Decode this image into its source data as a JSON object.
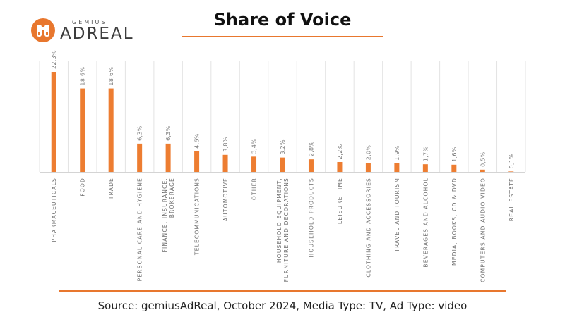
{
  "logo": {
    "small": "GEMIUS",
    "big": "ADREAL"
  },
  "chart_data": {
    "type": "bar",
    "title": "Share of Voice",
    "categories": [
      [
        "PHARMACEUTICALS"
      ],
      [
        "FOOD"
      ],
      [
        "TRADE"
      ],
      [
        "PERSONAL CARE AND HYGIENE"
      ],
      [
        "FINANCE, INSURANCE,",
        "BROKERAGE"
      ],
      [
        "TELECOMMUNICATIONS"
      ],
      [
        "AUTOMOTIVE"
      ],
      [
        "OTHER"
      ],
      [
        "HOUSEHOLD EQUIPMENT,",
        "FURNITURE AND DECORATIONS"
      ],
      [
        "HOUSEHOLD PRODUCTS"
      ],
      [
        "LEISURE TIME"
      ],
      [
        "CLOTHING AND ACCESSORIES"
      ],
      [
        "TRAVEL AND TOURISM"
      ],
      [
        "BEVERAGES AND ALCOHOL"
      ],
      [
        "MEDIA, BOOKS, CD & DVD"
      ],
      [
        "COMPUTERS AND AUDIO VIDEO"
      ],
      [
        "REAL ESTATE"
      ]
    ],
    "values": [
      22.3,
      18.6,
      18.6,
      6.3,
      6.3,
      4.6,
      3.8,
      3.4,
      3.2,
      2.8,
      2.2,
      2.0,
      1.9,
      1.7,
      1.6,
      0.5,
      0.1
    ],
    "data_labels": [
      "22,3%",
      "18,6%",
      "18,6%",
      "6,3%",
      "6,3%",
      "4,6%",
      "3,8%",
      "3,4%",
      "3,2%",
      "2,8%",
      "2,2%",
      "2,0%",
      "1,9%",
      "1,7%",
      "1,6%",
      "0,5%",
      "0,1%"
    ],
    "ylim": [
      0,
      25
    ],
    "bar_color": "#ed7d31",
    "grid_color": "#e3e3e3",
    "xlabel": "",
    "ylabel": ""
  },
  "source": "Source: gemiusAdReal, October 2024, Media Type: TV, Ad Type: video",
  "colors": {
    "accent": "#e8772e"
  }
}
